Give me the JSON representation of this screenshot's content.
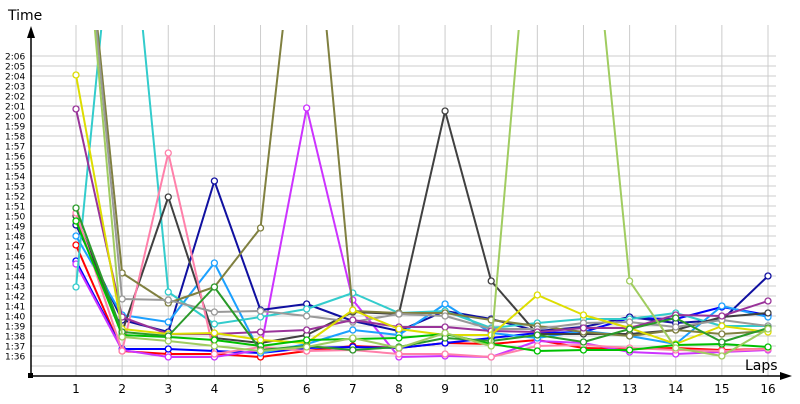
{
  "chart_data": {
    "type": "line",
    "title": "",
    "xlabel": "Laps",
    "ylabel": "Time",
    "x": [
      1,
      2,
      3,
      4,
      5,
      6,
      7,
      8,
      9,
      10,
      11,
      12,
      13,
      14,
      15,
      16
    ],
    "y_ticks": [
      "2:06",
      "2:05",
      "2:04",
      "2:03",
      "2:02",
      "2:01",
      "2:00",
      "1:59",
      "1:58",
      "1:57",
      "1:56",
      "1:55",
      "1:54",
      "1:53",
      "1:52",
      "1:51",
      "1:50",
      "1:49",
      "1:48",
      "1:47",
      "1:46",
      "1:45",
      "1:44",
      "1:43",
      "1:42",
      "1:41",
      "1:40",
      "1:39",
      "1:38",
      "1:37",
      "1:36"
    ],
    "ylim_seconds": [
      94,
      126
    ],
    "x_ticks": [
      "1",
      "2",
      "3",
      "4",
      "5",
      "6",
      "7",
      "8",
      "9",
      "10",
      "11",
      "12",
      "13",
      "14",
      "15",
      "16"
    ],
    "grid": true,
    "legend": "none",
    "units": "lap time in seconds (96 = 1:36, 126 = 2:06); values above 126 go off the top of the plot",
    "series": [
      {
        "name": "red",
        "color": "#ff0000",
        "values": [
          107.1,
          96.5,
          96.2,
          96.2,
          95.9,
          96.5,
          97.0,
          96.8,
          97.3,
          97.2,
          97.6,
          96.8,
          96.7,
          96.8,
          96.6,
          96.7
        ]
      },
      {
        "name": "blue",
        "color": "#0000ff",
        "values": [
          105.5,
          96.7,
          96.7,
          96.5,
          96.3,
          96.8,
          96.9,
          96.8,
          97.3,
          97.8,
          98.3,
          98.4,
          99.8,
          99.7,
          100.9,
          100.1
        ]
      },
      {
        "name": "violet",
        "color": "#cc33ff",
        "values": [
          105.2,
          96.6,
          95.9,
          95.9,
          96.6,
          120.8,
          101.6,
          95.9,
          96.0,
          95.9,
          97.5,
          97.3,
          96.4,
          96.2,
          96.4,
          96.6
        ]
      },
      {
        "name": "navy",
        "color": "#1010a0",
        "values": [
          109.1,
          99.6,
          98.4,
          113.5,
          100.6,
          101.2,
          99.5,
          98.5,
          100.5,
          99.7,
          98.5,
          98.9,
          99.9,
          99.3,
          99.6,
          104.0
        ]
      },
      {
        "name": "sky-blue",
        "color": "#1ca0ff",
        "values": [
          108.0,
          100.1,
          99.4,
          105.3,
          96.3,
          97.2,
          98.6,
          98.1,
          101.2,
          98.3,
          97.8,
          98.5,
          98.0,
          97.2,
          101.0,
          99.9
        ]
      },
      {
        "name": "teal",
        "color": "#33cccc",
        "values": [
          102.9,
          150.0,
          102.4,
          99.2,
          99.9,
          100.7,
          102.3,
          100.3,
          100.5,
          98.8,
          99.3,
          99.7,
          99.7,
          100.3,
          99.0,
          99.0
        ]
      },
      {
        "name": "dark-gray",
        "color": "#404040",
        "values": [
          110.0,
          98.4,
          111.9,
          97.8,
          97.3,
          98.1,
          100.4,
          100.2,
          120.5,
          103.5,
          98.2,
          98.2,
          98.2,
          98.6,
          99.9,
          100.3
        ]
      },
      {
        "name": "pink",
        "color": "#ff80aa",
        "values": [
          110.3,
          96.5,
          116.3,
          96.2,
          96.9,
          96.5,
          96.6,
          96.2,
          96.2,
          95.9,
          97.0,
          97.1,
          96.8,
          96.6,
          96.5,
          96.7
        ]
      },
      {
        "name": "olive",
        "color": "#808040",
        "values": [
          150.0,
          104.3,
          101.3,
          102.9,
          108.8,
          150.0,
          100.5,
          100.3,
          100.3,
          99.6,
          99.0,
          98.4,
          98.0,
          98.6,
          98.2,
          98.5
        ]
      },
      {
        "name": "gray",
        "color": "#999999",
        "values": [
          150.0,
          101.7,
          101.6,
          100.4,
          100.5,
          100.0,
          99.4,
          100.2,
          100.0,
          98.7,
          98.7,
          99.3,
          99.4,
          98.9,
          99.6,
          99.0
        ]
      },
      {
        "name": "purple",
        "color": "#993399",
        "values": [
          120.7,
          99.9,
          98.2,
          98.2,
          98.4,
          98.6,
          99.6,
          98.9,
          98.9,
          98.5,
          98.4,
          98.8,
          98.8,
          100.1,
          100.0,
          101.5
        ]
      },
      {
        "name": "yellow",
        "color": "#dddd00",
        "values": [
          124.1,
          98.7,
          98.2,
          98.3,
          97.6,
          97.3,
          100.6,
          98.7,
          98.1,
          98.1,
          102.1,
          100.1,
          98.8,
          97.2,
          99.0,
          98.4
        ]
      },
      {
        "name": "green",
        "color": "#00c000",
        "values": [
          109.5,
          98.1,
          97.9,
          97.6,
          97.0,
          97.6,
          97.7,
          97.8,
          98.2,
          97.2,
          96.5,
          96.6,
          96.6,
          97.1,
          97.2,
          96.9
        ]
      },
      {
        "name": "forest-green",
        "color": "#2a9a2a",
        "values": [
          110.8,
          98.4,
          98.0,
          102.9,
          96.6,
          97.0,
          96.6,
          96.9,
          97.8,
          97.5,
          98.1,
          97.4,
          98.7,
          99.8,
          97.4,
          98.8
        ]
      },
      {
        "name": "light-green",
        "color": "#a0cc60",
        "values": [
          150.0,
          97.9,
          97.5,
          97.0,
          96.5,
          96.9,
          97.8,
          96.8,
          98.3,
          97.0,
          150.0,
          150.0,
          103.5,
          96.8,
          96.0,
          98.7
        ]
      }
    ]
  },
  "axes": {
    "y_label": "Time",
    "x_label": "Laps"
  }
}
